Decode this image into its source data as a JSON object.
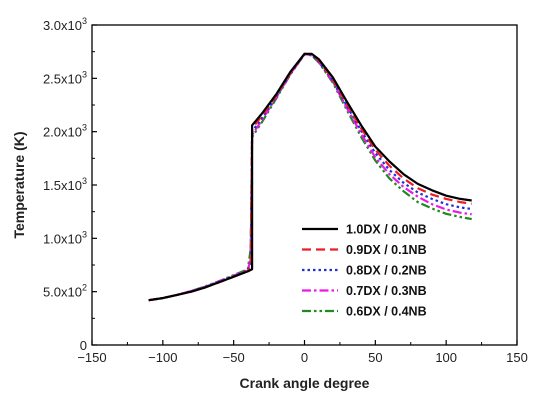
{
  "chart_data": {
    "type": "line",
    "xlabel": "Crank angle degree",
    "ylabel": "Temperature (K)",
    "xlim": [
      -150,
      150
    ],
    "ylim": [
      0,
      3000
    ],
    "x_ticks": [
      -150,
      -100,
      -50,
      0,
      50,
      100,
      150
    ],
    "x_tick_labels": [
      "−150",
      "−100",
      "−50",
      "0",
      "50",
      "100",
      "150"
    ],
    "y_ticks": [
      {
        "value": 0,
        "mantissa": "0",
        "exp": ""
      },
      {
        "value": 500,
        "mantissa": "5.0x10",
        "exp": "2"
      },
      {
        "value": 1000,
        "mantissa": "1.0x10",
        "exp": "3"
      },
      {
        "value": 1500,
        "mantissa": "1.5x10",
        "exp": "3"
      },
      {
        "value": 2000,
        "mantissa": "2.0x10",
        "exp": "3"
      },
      {
        "value": 2500,
        "mantissa": "2.5x10",
        "exp": "3"
      },
      {
        "value": 3000,
        "mantissa": "3.0x10",
        "exp": "3"
      }
    ],
    "grid": false,
    "legend_position": "lower-right",
    "series": [
      {
        "name": "1.0DX / 0.0NB",
        "color": "#000000",
        "dash": "solid",
        "points": [
          [
            -110,
            420
          ],
          [
            -100,
            440
          ],
          [
            -90,
            470
          ],
          [
            -80,
            500
          ],
          [
            -70,
            540
          ],
          [
            -60,
            590
          ],
          [
            -50,
            640
          ],
          [
            -40,
            690
          ],
          [
            -37,
            710
          ],
          [
            -37,
            2060
          ],
          [
            -30,
            2170
          ],
          [
            -20,
            2350
          ],
          [
            -10,
            2560
          ],
          [
            0,
            2730
          ],
          [
            5,
            2730
          ],
          [
            10,
            2680
          ],
          [
            20,
            2510
          ],
          [
            30,
            2280
          ],
          [
            40,
            2060
          ],
          [
            50,
            1860
          ],
          [
            60,
            1720
          ],
          [
            70,
            1600
          ],
          [
            80,
            1510
          ],
          [
            90,
            1450
          ],
          [
            100,
            1400
          ],
          [
            110,
            1370
          ],
          [
            118,
            1355
          ]
        ]
      },
      {
        "name": "0.9DX / 0.1NB",
        "color": "#ee1c24",
        "dash": "dash",
        "points": [
          [
            -110,
            420
          ],
          [
            -100,
            440
          ],
          [
            -90,
            470
          ],
          [
            -80,
            500
          ],
          [
            -70,
            540
          ],
          [
            -60,
            590
          ],
          [
            -50,
            640
          ],
          [
            -40,
            695
          ],
          [
            -38,
            740
          ],
          [
            -37,
            2030
          ],
          [
            -30,
            2150
          ],
          [
            -20,
            2340
          ],
          [
            -10,
            2550
          ],
          [
            0,
            2730
          ],
          [
            5,
            2725
          ],
          [
            10,
            2670
          ],
          [
            20,
            2490
          ],
          [
            30,
            2260
          ],
          [
            40,
            2030
          ],
          [
            50,
            1830
          ],
          [
            60,
            1680
          ],
          [
            70,
            1560
          ],
          [
            80,
            1470
          ],
          [
            90,
            1410
          ],
          [
            100,
            1370
          ],
          [
            110,
            1340
          ],
          [
            118,
            1325
          ]
        ]
      },
      {
        "name": "0.8DX / 0.2NB",
        "color": "#1f2fd8",
        "dash": "dot",
        "points": [
          [
            -110,
            420
          ],
          [
            -100,
            440
          ],
          [
            -90,
            470
          ],
          [
            -80,
            505
          ],
          [
            -70,
            545
          ],
          [
            -60,
            595
          ],
          [
            -50,
            645
          ],
          [
            -40,
            700
          ],
          [
            -38,
            760
          ],
          [
            -37,
            2000
          ],
          [
            -30,
            2130
          ],
          [
            -20,
            2330
          ],
          [
            -10,
            2545
          ],
          [
            0,
            2725
          ],
          [
            5,
            2720
          ],
          [
            10,
            2660
          ],
          [
            20,
            2480
          ],
          [
            30,
            2240
          ],
          [
            40,
            2010
          ],
          [
            50,
            1800
          ],
          [
            60,
            1640
          ],
          [
            70,
            1520
          ],
          [
            80,
            1430
          ],
          [
            90,
            1370
          ],
          [
            100,
            1320
          ],
          [
            110,
            1290
          ],
          [
            118,
            1275
          ]
        ]
      },
      {
        "name": "0.7DX / 0.3NB",
        "color": "#ec18e6",
        "dash": "dashdot",
        "points": [
          [
            -110,
            420
          ],
          [
            -100,
            440
          ],
          [
            -90,
            470
          ],
          [
            -80,
            505
          ],
          [
            -70,
            545
          ],
          [
            -60,
            600
          ],
          [
            -50,
            650
          ],
          [
            -40,
            705
          ],
          [
            -38,
            800
          ],
          [
            -37,
            1970
          ],
          [
            -30,
            2110
          ],
          [
            -20,
            2320
          ],
          [
            -10,
            2540
          ],
          [
            0,
            2725
          ],
          [
            5,
            2720
          ],
          [
            10,
            2655
          ],
          [
            20,
            2470
          ],
          [
            30,
            2220
          ],
          [
            40,
            1980
          ],
          [
            50,
            1760
          ],
          [
            60,
            1600
          ],
          [
            70,
            1480
          ],
          [
            80,
            1390
          ],
          [
            90,
            1320
          ],
          [
            100,
            1270
          ],
          [
            110,
            1240
          ],
          [
            118,
            1225
          ]
        ]
      },
      {
        "name": "0.6DX / 0.4NB",
        "color": "#1f8a1f",
        "dash": "dashdotdot",
        "points": [
          [
            -110,
            420
          ],
          [
            -100,
            440
          ],
          [
            -90,
            470
          ],
          [
            -80,
            505
          ],
          [
            -70,
            550
          ],
          [
            -60,
            600
          ],
          [
            -50,
            655
          ],
          [
            -40,
            710
          ],
          [
            -38,
            900
          ],
          [
            -37,
            1950
          ],
          [
            -30,
            2090
          ],
          [
            -20,
            2310
          ],
          [
            -10,
            2535
          ],
          [
            0,
            2725
          ],
          [
            5,
            2715
          ],
          [
            10,
            2650
          ],
          [
            20,
            2460
          ],
          [
            30,
            2200
          ],
          [
            40,
            1950
          ],
          [
            50,
            1730
          ],
          [
            60,
            1560
          ],
          [
            70,
            1440
          ],
          [
            80,
            1340
          ],
          [
            90,
            1280
          ],
          [
            100,
            1230
          ],
          [
            110,
            1200
          ],
          [
            118,
            1180
          ]
        ]
      }
    ]
  }
}
